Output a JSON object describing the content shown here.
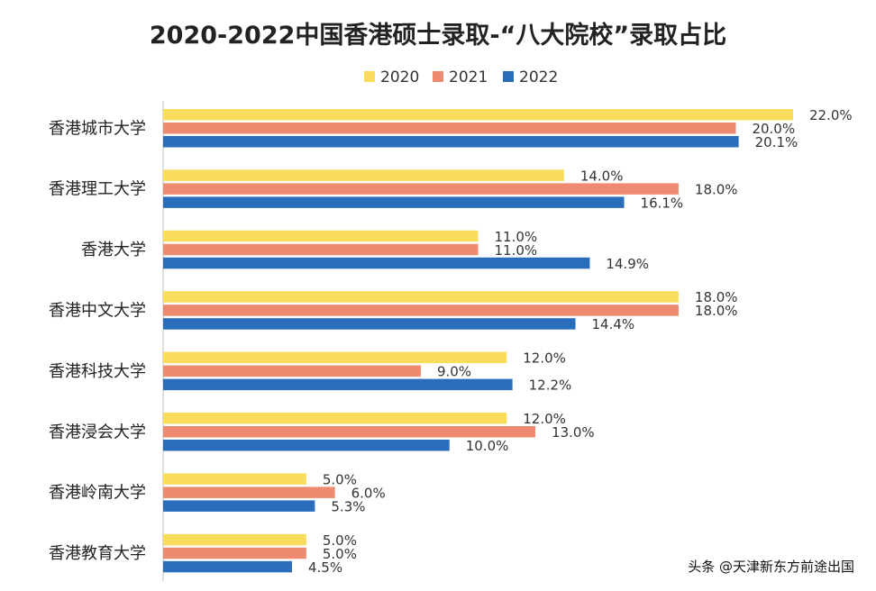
{
  "chart_data": {
    "type": "bar",
    "orientation": "horizontal",
    "title": "2020-2022中国香港硕士录取-“八大院校”录取占比",
    "categories": [
      "香港城市大学",
      "香港理工大学",
      "香港大学",
      "香港中文大学",
      "香港科技大学",
      "香港浸会大学",
      "香港岭南大学",
      "香港教育大学"
    ],
    "series": [
      {
        "name": "2020",
        "color": "#f9dc5c",
        "values": [
          22.0,
          14.0,
          11.0,
          18.0,
          12.0,
          12.0,
          5.0,
          5.0
        ]
      },
      {
        "name": "2021",
        "color": "#ee8a70",
        "values": [
          20.0,
          18.0,
          11.0,
          18.0,
          9.0,
          13.0,
          6.0,
          5.0
        ]
      },
      {
        "name": "2022",
        "color": "#2a6ebb",
        "values": [
          20.1,
          16.1,
          14.9,
          14.4,
          12.2,
          10.0,
          5.3,
          4.5
        ]
      }
    ],
    "value_format": "0.0%",
    "xlim": [
      0,
      22
    ],
    "grid": false,
    "legend_position": "top-center"
  },
  "watermark": {
    "text": "头条 @天津新东方前途出国"
  }
}
